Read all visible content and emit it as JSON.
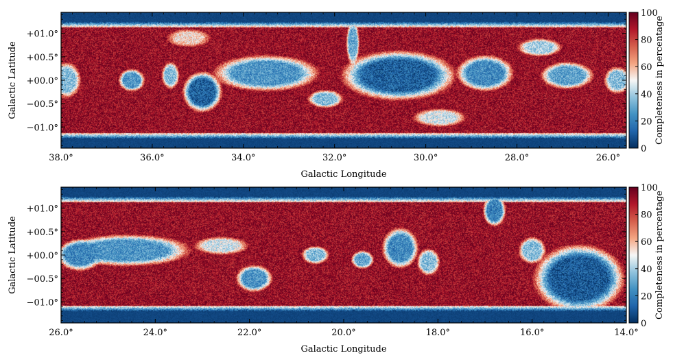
{
  "chart_data": [
    {
      "type": "heatmap",
      "xlabel": "Galactic Longitude",
      "ylabel": "Galactic Latitude",
      "xlim": [
        38.0,
        25.6
      ],
      "ylim": [
        -1.45,
        1.45
      ],
      "xticks": [
        {
          "value": 38.0,
          "label": "38.0°"
        },
        {
          "value": 36.0,
          "label": "36.0°"
        },
        {
          "value": 34.0,
          "label": "34.0°"
        },
        {
          "value": 32.0,
          "label": "32.0°"
        },
        {
          "value": 30.0,
          "label": "30.0°"
        },
        {
          "value": 28.0,
          "label": "28.0°"
        },
        {
          "value": 26.0,
          "label": "26.0°"
        }
      ],
      "yticks": [
        {
          "value": 1.0,
          "label": "+01.0°"
        },
        {
          "value": 0.5,
          "label": "+00.5°"
        },
        {
          "value": 0.0,
          "label": "+00.0°"
        },
        {
          "value": -0.5,
          "label": "−00.5°"
        },
        {
          "value": -1.0,
          "label": "−01.0°"
        }
      ],
      "colorbar": {
        "label": "Completeness in percentage",
        "range": [
          0,
          100
        ],
        "ticks": [
          "0",
          "20",
          "40",
          "60",
          "80",
          "100"
        ],
        "colormap": [
          "#053061",
          "#2166ac",
          "#4393c3",
          "#92c5de",
          "#f7f7f7",
          "#f4a582",
          "#d6604d",
          "#b2182b",
          "#67001f"
        ]
      },
      "field": {
        "outside_value": 3,
        "base_value": 92,
        "b_extent": [
          -1.25,
          1.25
        ],
        "l_extent": [
          38.0,
          25.6
        ],
        "low_regions": [
          {
            "l": 30.6,
            "b": 0.1,
            "rl": 1.3,
            "rb": 0.55,
            "v": 12
          },
          {
            "l": 33.5,
            "b": 0.15,
            "rl": 1.2,
            "rb": 0.4,
            "v": 25
          },
          {
            "l": 34.9,
            "b": -0.25,
            "rl": 0.45,
            "rb": 0.45,
            "v": 12
          },
          {
            "l": 36.45,
            "b": 0.0,
            "rl": 0.3,
            "rb": 0.25,
            "v": 25
          },
          {
            "l": 35.6,
            "b": 0.1,
            "rl": 0.2,
            "rb": 0.3,
            "v": 35
          },
          {
            "l": 28.7,
            "b": 0.15,
            "rl": 0.65,
            "rb": 0.4,
            "v": 22
          },
          {
            "l": 31.6,
            "b": 0.8,
            "rl": 0.15,
            "rb": 0.5,
            "v": 30
          },
          {
            "l": 32.2,
            "b": -0.4,
            "rl": 0.4,
            "rb": 0.2,
            "v": 35
          },
          {
            "l": 26.9,
            "b": 0.1,
            "rl": 0.6,
            "rb": 0.3,
            "v": 28
          },
          {
            "l": 27.5,
            "b": 0.7,
            "rl": 0.5,
            "rb": 0.2,
            "v": 40
          },
          {
            "l": 37.9,
            "b": 0.0,
            "rl": 0.35,
            "rb": 0.4,
            "v": 35
          },
          {
            "l": 25.8,
            "b": 0.0,
            "rl": 0.3,
            "rb": 0.3,
            "v": 35
          },
          {
            "l": 29.7,
            "b": -0.8,
            "rl": 0.6,
            "rb": 0.2,
            "v": 45
          },
          {
            "l": 35.2,
            "b": 0.9,
            "rl": 0.5,
            "rb": 0.2,
            "v": 55
          }
        ]
      }
    },
    {
      "type": "heatmap",
      "xlabel": "Galactic Longitude",
      "ylabel": "Galactic Latitude",
      "xlim": [
        26.0,
        14.0
      ],
      "ylim": [
        -1.45,
        1.45
      ],
      "xticks": [
        {
          "value": 26.0,
          "label": "26.0°"
        },
        {
          "value": 24.0,
          "label": "24.0°"
        },
        {
          "value": 22.0,
          "label": "22.0°"
        },
        {
          "value": 20.0,
          "label": "20.0°"
        },
        {
          "value": 18.0,
          "label": "18.0°"
        },
        {
          "value": 16.0,
          "label": "16.0°"
        },
        {
          "value": 14.0,
          "label": "14.0°"
        }
      ],
      "yticks": [
        {
          "value": 1.0,
          "label": "+01.0°"
        },
        {
          "value": 0.5,
          "label": "+00.5°"
        },
        {
          "value": 0.0,
          "label": "+00.0°"
        },
        {
          "value": -0.5,
          "label": "−00.5°"
        },
        {
          "value": -1.0,
          "label": "−01.0°"
        }
      ],
      "colorbar": {
        "label": "Completeness in percentage",
        "range": [
          0,
          100
        ],
        "ticks": [
          "0",
          "20",
          "40",
          "60",
          "80",
          "100"
        ],
        "colormap": [
          "#053061",
          "#2166ac",
          "#4393c3",
          "#92c5de",
          "#f7f7f7",
          "#f4a582",
          "#d6604d",
          "#b2182b",
          "#67001f"
        ]
      },
      "field": {
        "outside_value": 3,
        "base_value": 92,
        "b_extent": [
          -1.2,
          1.25
        ],
        "l_extent": [
          26.0,
          14.0
        ],
        "low_regions": [
          {
            "l": 15.0,
            "b": -0.5,
            "rl": 1.0,
            "rb": 0.75,
            "v": 10
          },
          {
            "l": 24.6,
            "b": 0.1,
            "rl": 1.4,
            "rb": 0.35,
            "v": 25
          },
          {
            "l": 25.6,
            "b": 0.0,
            "rl": 0.5,
            "rb": 0.35,
            "v": 22
          },
          {
            "l": 21.9,
            "b": -0.5,
            "rl": 0.4,
            "rb": 0.3,
            "v": 25
          },
          {
            "l": 18.8,
            "b": 0.15,
            "rl": 0.4,
            "rb": 0.45,
            "v": 22
          },
          {
            "l": 19.6,
            "b": -0.1,
            "rl": 0.25,
            "rb": 0.2,
            "v": 30
          },
          {
            "l": 20.6,
            "b": 0.0,
            "rl": 0.3,
            "rb": 0.2,
            "v": 35
          },
          {
            "l": 18.2,
            "b": -0.15,
            "rl": 0.25,
            "rb": 0.3,
            "v": 35
          },
          {
            "l": 16.8,
            "b": 0.95,
            "rl": 0.25,
            "rb": 0.35,
            "v": 20
          },
          {
            "l": 16.0,
            "b": 0.1,
            "rl": 0.3,
            "rb": 0.3,
            "v": 35
          },
          {
            "l": 22.6,
            "b": 0.2,
            "rl": 0.6,
            "rb": 0.2,
            "v": 45
          }
        ]
      }
    }
  ]
}
